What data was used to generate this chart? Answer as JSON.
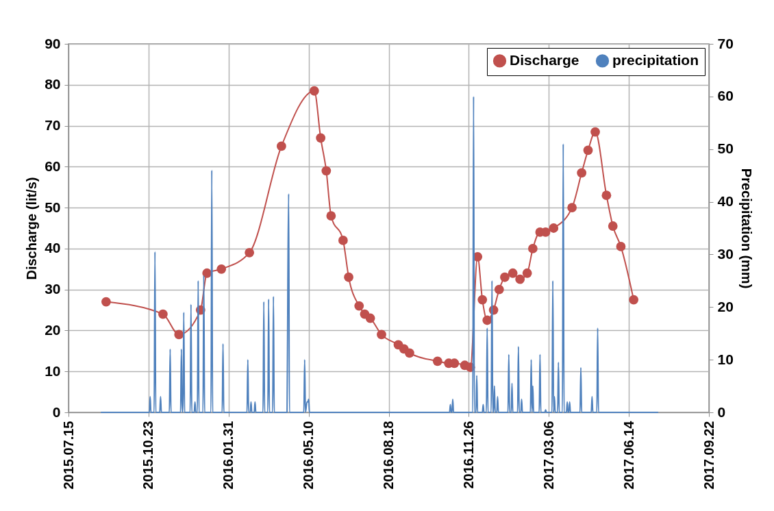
{
  "chart_data": {
    "type": "line",
    "ylabel": "Discharge (lit/s)",
    "y2label": "Precipitation (mm)",
    "xlim": [
      "2015-07-15",
      "2017-09-22"
    ],
    "xticks": [
      {
        "value": "2015-07-15",
        "label": "2015.07.15"
      },
      {
        "value": "2015-10-23",
        "label": "2015.10.23"
      },
      {
        "value": "2016-01-31",
        "label": "2016.01.31"
      },
      {
        "value": "2016-05-10",
        "label": "2016.05.10"
      },
      {
        "value": "2016-08-18",
        "label": "2016.08.18"
      },
      {
        "value": "2016-11-26",
        "label": "2016.11.26"
      },
      {
        "value": "2017-03-06",
        "label": "2017.03.06"
      },
      {
        "value": "2017-06-14",
        "label": "2017.06.14"
      },
      {
        "value": "2017-09-22",
        "label": "2017.09.22"
      }
    ],
    "ylim": [
      0,
      90
    ],
    "yticks": [
      0,
      10,
      20,
      30,
      40,
      50,
      60,
      70,
      80,
      90
    ],
    "y2lim": [
      0,
      70
    ],
    "y2ticks": [
      0,
      10,
      20,
      30,
      40,
      50,
      60,
      70
    ],
    "grid": true,
    "legend": "top right",
    "series": [
      {
        "name": "Discharge",
        "color": "#c0504d",
        "marker": "circle",
        "x": [
          "2015-08-31",
          "2015-11-10",
          "2015-11-30",
          "2015-12-27",
          "2016-01-04",
          "2016-01-22",
          "2016-02-26",
          "2016-04-06",
          "2016-05-17",
          "2016-05-25",
          "2016-06-01",
          "2016-06-07",
          "2016-06-22",
          "2016-06-29",
          "2016-07-12",
          "2016-07-19",
          "2016-07-26",
          "2016-08-09",
          "2016-08-30",
          "2016-09-06",
          "2016-09-13",
          "2016-10-18",
          "2016-11-01",
          "2016-11-08",
          "2016-11-21",
          "2016-11-28",
          "2016-12-07",
          "2016-12-13",
          "2016-12-19",
          "2016-12-27",
          "2017-01-03",
          "2017-01-10",
          "2017-01-20",
          "2017-01-29",
          "2017-02-07",
          "2017-02-14",
          "2017-02-23",
          "2017-03-02",
          "2017-03-12",
          "2017-04-04",
          "2017-04-16",
          "2017-04-24",
          "2017-05-03",
          "2017-05-17",
          "2017-05-25",
          "2017-06-04",
          "2017-06-20"
        ],
        "values": [
          27,
          24,
          19,
          25,
          34,
          35,
          39,
          65,
          78.5,
          67,
          59,
          48,
          42,
          33,
          26,
          24,
          23,
          19,
          16.5,
          15.5,
          14.5,
          12.5,
          12,
          12,
          11.5,
          11,
          38,
          27.5,
          22.5,
          25,
          30,
          33,
          34,
          32.5,
          34,
          40,
          44,
          44,
          45,
          50,
          58.5,
          64,
          68.5,
          53,
          45.5,
          40.5,
          27.5
        ]
      },
      {
        "name": "precipitation",
        "color": "#4f81bd",
        "marker": "none",
        "axis": "y2",
        "x": [
          "2015-08-25",
          "2015-10-24",
          "2015-10-25",
          "2015-10-26",
          "2015-10-30",
          "2015-10-31",
          "2015-11-01",
          "2015-11-06",
          "2015-11-07",
          "2015-11-08",
          "2015-11-18",
          "2015-11-19",
          "2015-11-20",
          "2015-12-02",
          "2015-12-03",
          "2015-12-04",
          "2015-12-05",
          "2015-12-06",
          "2015-12-07",
          "2015-12-14",
          "2015-12-15",
          "2015-12-16",
          "2015-12-19",
          "2015-12-20",
          "2015-12-21",
          "2015-12-23",
          "2015-12-24",
          "2015-12-25",
          "2015-12-30",
          "2015-12-31",
          "2016-01-01",
          "2016-01-09",
          "2016-01-10",
          "2016-01-11",
          "2016-01-23",
          "2016-01-24",
          "2016-01-25",
          "2016-02-23",
          "2016-02-24",
          "2016-02-25",
          "2016-02-27",
          "2016-02-28",
          "2016-02-29",
          "2016-03-03",
          "2016-03-04",
          "2016-03-05",
          "2016-03-14",
          "2016-03-15",
          "2016-03-16",
          "2016-03-20",
          "2016-03-21",
          "2016-03-22",
          "2016-03-26",
          "2016-03-27",
          "2016-03-28",
          "2016-04-13",
          "2016-04-14",
          "2016-04-15",
          "2016-04-16",
          "2016-05-04",
          "2016-05-05",
          "2016-05-06",
          "2016-05-08",
          "2016-05-09",
          "2016-05-10",
          "2016-05-11",
          "2016-11-02",
          "2016-11-03",
          "2016-11-04",
          "2016-11-05",
          "2016-11-06",
          "2016-11-07",
          "2016-12-01",
          "2016-12-02",
          "2016-12-03",
          "2016-12-05",
          "2016-12-06",
          "2016-12-07",
          "2016-12-13",
          "2016-12-14",
          "2016-12-15",
          "2016-12-18",
          "2016-12-19",
          "2016-12-20",
          "2016-12-24",
          "2016-12-25",
          "2016-12-26",
          "2016-12-27",
          "2016-12-28",
          "2016-12-29",
          "2016-12-31",
          "2017-01-01",
          "2017-01-02",
          "2017-01-14",
          "2017-01-15",
          "2017-01-16",
          "2017-01-18",
          "2017-01-19",
          "2017-01-20",
          "2017-01-26",
          "2017-01-27",
          "2017-01-28",
          "2017-01-30",
          "2017-01-31",
          "2017-02-01",
          "2017-02-11",
          "2017-02-12",
          "2017-02-13",
          "2017-02-14",
          "2017-02-15",
          "2017-02-22",
          "2017-02-23",
          "2017-02-24",
          "2017-03-01",
          "2017-03-02",
          "2017-03-03",
          "2017-03-10",
          "2017-03-11",
          "2017-03-12",
          "2017-03-13",
          "2017-03-14",
          "2017-03-17",
          "2017-03-18",
          "2017-03-19",
          "2017-03-23",
          "2017-03-24",
          "2017-03-25",
          "2017-03-28",
          "2017-03-29",
          "2017-03-30",
          "2017-03-31",
          "2017-04-01",
          "2017-04-02",
          "2017-04-14",
          "2017-04-15",
          "2017-04-16",
          "2017-04-28",
          "2017-04-29",
          "2017-04-30",
          "2017-05-05",
          "2017-05-06",
          "2017-05-07",
          "2017-07-20"
        ],
        "values": [
          0,
          0,
          3,
          0,
          0,
          30.5,
          0,
          0,
          3,
          0,
          0,
          12,
          0,
          0,
          12,
          0,
          0,
          19,
          0,
          0,
          20.5,
          0,
          0,
          2,
          0,
          0,
          25,
          0,
          0,
          26,
          0,
          0,
          46,
          0,
          0,
          13,
          0,
          0,
          10,
          0,
          0,
          2,
          0,
          0,
          2,
          0,
          0,
          21,
          0,
          0,
          21.5,
          0,
          0,
          22,
          0,
          0,
          25,
          41.5,
          0,
          0,
          10,
          0,
          2,
          2,
          2.5,
          0,
          0,
          1.5,
          0,
          0,
          2.5,
          0,
          0,
          60,
          0,
          0,
          7,
          0,
          0,
          1.5,
          0,
          0,
          16,
          0,
          0,
          25,
          0,
          0,
          5,
          0,
          0,
          3,
          0,
          0,
          11,
          0,
          0,
          5.5,
          0,
          0,
          12.5,
          0,
          0,
          2.5,
          0,
          0,
          10,
          0,
          5,
          0,
          0,
          11,
          0,
          0,
          0.5,
          0,
          0,
          25,
          0,
          3,
          0,
          0,
          9.5,
          0,
          0,
          51,
          0,
          0,
          2,
          0,
          0,
          2,
          0,
          0,
          8.5,
          0,
          0,
          3,
          0,
          0,
          16,
          0,
          0
        ]
      }
    ]
  }
}
